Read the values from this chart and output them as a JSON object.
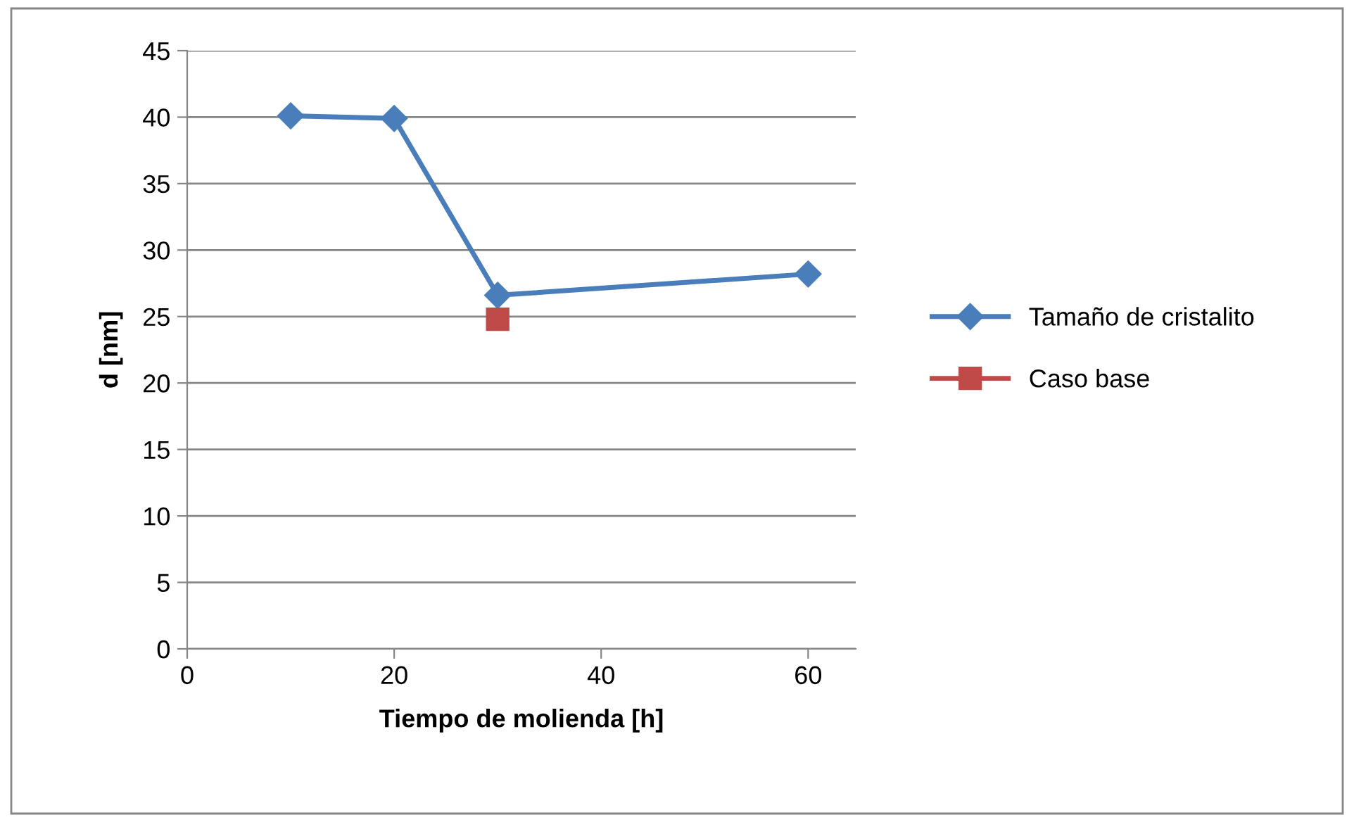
{
  "chart_data": {
    "type": "line",
    "xlabel": "Tiempo de molienda [h]",
    "ylabel": "d [nm]",
    "series": [
      {
        "name": "Tamaño de cristalito",
        "color": "#4a7ebb",
        "x": [
          10,
          20,
          30,
          60
        ],
        "values": [
          40.1,
          39.9,
          26.6,
          28.2
        ],
        "marker": "diamond"
      },
      {
        "name": "Caso base",
        "color": "#be4b48",
        "x": [
          30
        ],
        "values": [
          24.8
        ],
        "marker": "square"
      }
    ],
    "xlim": [
      0,
      64.6
    ],
    "xticks": [
      0,
      20,
      40,
      60
    ],
    "ylim": [
      0,
      45
    ],
    "yticks": [
      0,
      5,
      10,
      15,
      20,
      25,
      30,
      35,
      40,
      45
    ],
    "grid": "y",
    "legend": "right",
    "line_style": "solid"
  }
}
